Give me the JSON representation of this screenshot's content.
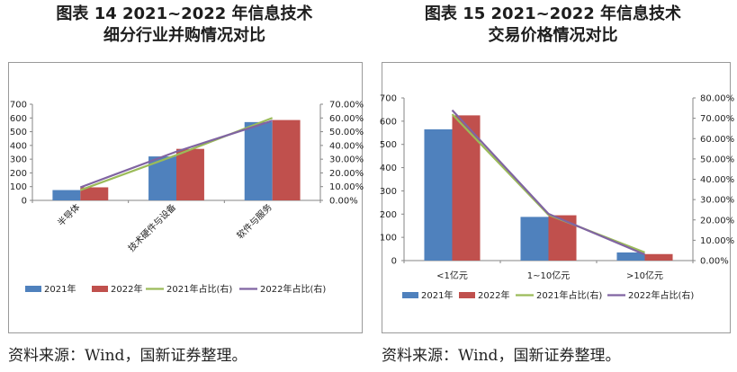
{
  "figures": [
    {
      "title_line1": "图表 14 2021~2022 年信息技术",
      "title_line2": "细分行业并购情况对比",
      "source": "资料来源：Wind，国新证券整理。"
    },
    {
      "title_line1": "图表 15 2021~2022 年信息技术",
      "title_line2": "交易价格情况对比",
      "source": "资料来源：Wind，国新证券整理。"
    }
  ],
  "colors": {
    "bar_2021": "#4f81bd",
    "bar_2022": "#c0504d",
    "line_2021": "#9bbb59",
    "line_2022": "#8064a2"
  },
  "chart_data": [
    {
      "type": "bar",
      "categories": [
        "半导体",
        "技术硬件与设备",
        "软件与服务"
      ],
      "series": [
        {
          "name": "2021年",
          "values": [
            75,
            320,
            570
          ]
        },
        {
          "name": "2022年",
          "values": [
            95,
            375,
            585
          ]
        },
        {
          "name": "2021年占比(右)",
          "type": "line",
          "axis": "right",
          "values": [
            0.075,
            0.33,
            0.6
          ]
        },
        {
          "name": "2022年占比(右)",
          "type": "line",
          "axis": "right",
          "values": [
            0.095,
            0.355,
            0.58
          ]
        }
      ],
      "yticks_left": [
        "0",
        "100",
        "200",
        "300",
        "400",
        "500",
        "600",
        "700"
      ],
      "yticks_right": [
        "0.00%",
        "10.00%",
        "20.00%",
        "30.00%",
        "40.00%",
        "50.00%",
        "60.00%",
        "70.00%"
      ],
      "ylim_left": [
        0,
        700
      ],
      "ylim_right": [
        0,
        0.7
      ],
      "legend": "bottom",
      "grid": false
    },
    {
      "type": "bar",
      "categories": [
        "<1亿元",
        "1~10亿元",
        ">10亿元"
      ],
      "series": [
        {
          "name": "2021年",
          "values": [
            565,
            188,
            35
          ]
        },
        {
          "name": "2022年",
          "values": [
            625,
            195,
            28
          ]
        },
        {
          "name": "2021年占比(右)",
          "type": "line",
          "axis": "right",
          "values": [
            0.72,
            0.225,
            0.04
          ]
        },
        {
          "name": "2022年占比(右)",
          "type": "line",
          "axis": "right",
          "values": [
            0.74,
            0.23,
            0.03
          ]
        }
      ],
      "yticks_left": [
        "0",
        "100",
        "200",
        "300",
        "400",
        "500",
        "600",
        "700"
      ],
      "yticks_right": [
        "0.00%",
        "10.00%",
        "20.00%",
        "30.00%",
        "40.00%",
        "50.00%",
        "60.00%",
        "70.00%",
        "80.00%"
      ],
      "ylim_left": [
        0,
        700
      ],
      "ylim_right": [
        0,
        0.8
      ],
      "legend": "bottom",
      "grid": false
    }
  ]
}
